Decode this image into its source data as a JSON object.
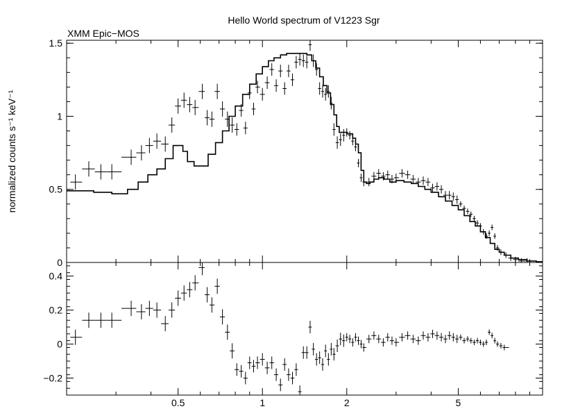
{
  "chart_data": {
    "type": "scatter",
    "title": "Hello World spectrum of V1223 Sgr",
    "instrument_label": "XMM Epic−MOS",
    "x_scale": "log",
    "xlim": [
      0.2,
      10
    ],
    "x_ticks": [
      0.5,
      1,
      2,
      5
    ],
    "x_tick_labels": [
      "0.5",
      "1",
      "2",
      "5"
    ],
    "grid": false,
    "legend": "none",
    "panels": [
      {
        "name": "spectrum",
        "ylabel": "normalized counts s⁻¹ keV⁻¹",
        "ylim": [
          0,
          1.52
        ],
        "y_ticks": [
          0,
          0.5,
          1,
          1.5
        ],
        "y_tick_labels": [
          "0",
          "0.5",
          "1",
          "1.5"
        ],
        "data_points": [
          [
            0.215,
            0.55
          ],
          [
            0.24,
            0.64
          ],
          [
            0.265,
            0.62
          ],
          [
            0.29,
            0.62
          ],
          [
            0.34,
            0.72
          ],
          [
            0.37,
            0.75
          ],
          [
            0.395,
            0.8
          ],
          [
            0.42,
            0.83
          ],
          [
            0.45,
            0.81
          ],
          [
            0.475,
            0.94
          ],
          [
            0.5,
            1.07
          ],
          [
            0.525,
            1.11
          ],
          [
            0.55,
            1.08
          ],
          [
            0.575,
            1.06
          ],
          [
            0.61,
            1.17
          ],
          [
            0.635,
            0.99
          ],
          [
            0.66,
            0.98
          ],
          [
            0.69,
            1.17
          ],
          [
            0.72,
            1.05
          ],
          [
            0.75,
            0.98
          ],
          [
            0.78,
            0.94
          ],
          [
            0.81,
            0.91
          ],
          [
            0.84,
            1.04
          ],
          [
            0.87,
            0.92
          ],
          [
            0.9,
            1.16
          ],
          [
            0.93,
            1.05
          ],
          [
            0.96,
            1.2
          ],
          [
            1.0,
            1.15
          ],
          [
            1.04,
            1.23
          ],
          [
            1.08,
            1.32
          ],
          [
            1.12,
            1.21
          ],
          [
            1.16,
            1.31
          ],
          [
            1.2,
            1.19
          ],
          [
            1.24,
            1.31
          ],
          [
            1.28,
            1.25
          ],
          [
            1.32,
            1.37
          ],
          [
            1.36,
            1.39
          ],
          [
            1.4,
            1.38
          ],
          [
            1.44,
            1.37
          ],
          [
            1.48,
            1.49
          ],
          [
            1.52,
            1.38
          ],
          [
            1.56,
            1.32
          ],
          [
            1.6,
            1.19
          ],
          [
            1.64,
            1.17
          ],
          [
            1.68,
            1.15
          ],
          [
            1.72,
            1.17
          ],
          [
            1.76,
            1.09
          ],
          [
            1.8,
            0.91
          ],
          [
            1.85,
            0.82
          ],
          [
            1.9,
            0.84
          ],
          [
            1.95,
            0.87
          ],
          [
            2.0,
            0.89
          ],
          [
            2.05,
            0.87
          ],
          [
            2.1,
            0.83
          ],
          [
            2.15,
            0.79
          ],
          [
            2.2,
            0.68
          ],
          [
            2.25,
            0.58
          ],
          [
            2.3,
            0.55
          ],
          [
            2.4,
            0.55
          ],
          [
            2.5,
            0.59
          ],
          [
            2.6,
            0.61
          ],
          [
            2.7,
            0.59
          ],
          [
            2.8,
            0.6
          ],
          [
            2.9,
            0.57
          ],
          [
            3.0,
            0.58
          ],
          [
            3.15,
            0.61
          ],
          [
            3.3,
            0.6
          ],
          [
            3.45,
            0.57
          ],
          [
            3.6,
            0.55
          ],
          [
            3.75,
            0.56
          ],
          [
            3.9,
            0.55
          ],
          [
            4.05,
            0.51
          ],
          [
            4.2,
            0.52
          ],
          [
            4.35,
            0.5
          ],
          [
            4.5,
            0.46
          ],
          [
            4.65,
            0.46
          ],
          [
            4.8,
            0.45
          ],
          [
            4.95,
            0.43
          ],
          [
            5.1,
            0.4
          ],
          [
            5.25,
            0.37
          ],
          [
            5.4,
            0.35
          ],
          [
            5.55,
            0.33
          ],
          [
            5.7,
            0.3
          ],
          [
            5.85,
            0.27
          ],
          [
            6.0,
            0.25
          ],
          [
            6.15,
            0.21
          ],
          [
            6.3,
            0.18
          ],
          [
            6.45,
            0.2
          ],
          [
            6.6,
            0.24
          ],
          [
            6.75,
            0.18
          ],
          [
            6.9,
            0.1
          ],
          [
            7.1,
            0.07
          ],
          [
            7.4,
            0.05
          ],
          [
            7.7,
            0.03
          ],
          [
            8.0,
            0.02
          ],
          [
            8.4,
            0.01
          ],
          [
            8.8,
            0.01
          ]
        ],
        "model_bins": [
          [
            0.2,
            0.49
          ],
          [
            0.25,
            0.48
          ],
          [
            0.29,
            0.47
          ],
          [
            0.33,
            0.5
          ],
          [
            0.36,
            0.55
          ],
          [
            0.39,
            0.6
          ],
          [
            0.42,
            0.64
          ],
          [
            0.45,
            0.71
          ],
          [
            0.48,
            0.8
          ],
          [
            0.52,
            0.76
          ],
          [
            0.54,
            0.69
          ],
          [
            0.57,
            0.66
          ],
          [
            0.6,
            0.66
          ],
          [
            0.64,
            0.74
          ],
          [
            0.68,
            0.82
          ],
          [
            0.72,
            0.9
          ],
          [
            0.76,
            1.0
          ],
          [
            0.8,
            1.07
          ],
          [
            0.85,
            1.15
          ],
          [
            0.9,
            1.22
          ],
          [
            0.95,
            1.29
          ],
          [
            1.0,
            1.34
          ],
          [
            1.05,
            1.38
          ],
          [
            1.1,
            1.4
          ],
          [
            1.16,
            1.42
          ],
          [
            1.22,
            1.43
          ],
          [
            1.3,
            1.43
          ],
          [
            1.38,
            1.43
          ],
          [
            1.44,
            1.42
          ],
          [
            1.5,
            1.38
          ],
          [
            1.55,
            1.33
          ],
          [
            1.6,
            1.27
          ],
          [
            1.65,
            1.21
          ],
          [
            1.7,
            1.16
          ],
          [
            1.75,
            1.08
          ],
          [
            1.8,
            1.01
          ],
          [
            1.84,
            0.93
          ],
          [
            1.88,
            0.89
          ],
          [
            2.0,
            0.88
          ],
          [
            2.1,
            0.85
          ],
          [
            2.15,
            0.81
          ],
          [
            2.2,
            0.75
          ],
          [
            2.25,
            0.63
          ],
          [
            2.3,
            0.55
          ],
          [
            2.35,
            0.54
          ],
          [
            2.42,
            0.55
          ],
          [
            2.5,
            0.57
          ],
          [
            2.6,
            0.58
          ],
          [
            2.72,
            0.57
          ],
          [
            2.85,
            0.55
          ],
          [
            3.0,
            0.56
          ],
          [
            3.2,
            0.55
          ],
          [
            3.4,
            0.54
          ],
          [
            3.6,
            0.52
          ],
          [
            3.8,
            0.5
          ],
          [
            4.0,
            0.48
          ],
          [
            4.25,
            0.45
          ],
          [
            4.5,
            0.42
          ],
          [
            4.75,
            0.39
          ],
          [
            5.0,
            0.36
          ],
          [
            5.25,
            0.32
          ],
          [
            5.5,
            0.28
          ],
          [
            5.75,
            0.25
          ],
          [
            6.0,
            0.21
          ],
          [
            6.25,
            0.17
          ],
          [
            6.5,
            0.13
          ],
          [
            6.75,
            0.09
          ],
          [
            7.0,
            0.07
          ],
          [
            7.3,
            0.05
          ],
          [
            7.7,
            0.03
          ],
          [
            8.2,
            0.02
          ],
          [
            8.8,
            0.01
          ],
          [
            9.5,
            0.005
          ],
          [
            10.0,
            0.0
          ]
        ]
      },
      {
        "name": "residuals",
        "ylabel": "",
        "ylim": [
          -0.3,
          0.48
        ],
        "y_ticks": [
          -0.2,
          0,
          0.2,
          0.4
        ],
        "y_tick_labels": [
          "−0.2",
          "0",
          "0.2",
          "0.4"
        ],
        "data_points": [
          [
            0.215,
            0.04
          ],
          [
            0.24,
            0.14
          ],
          [
            0.265,
            0.14
          ],
          [
            0.29,
            0.14
          ],
          [
            0.34,
            0.21
          ],
          [
            0.37,
            0.19
          ],
          [
            0.395,
            0.21
          ],
          [
            0.42,
            0.2
          ],
          [
            0.45,
            0.12
          ],
          [
            0.475,
            0.2
          ],
          [
            0.5,
            0.27
          ],
          [
            0.525,
            0.3
          ],
          [
            0.55,
            0.32
          ],
          [
            0.575,
            0.36
          ],
          [
            0.61,
            0.45
          ],
          [
            0.635,
            0.29
          ],
          [
            0.66,
            0.23
          ],
          [
            0.69,
            0.34
          ],
          [
            0.72,
            0.16
          ],
          [
            0.75,
            0.07
          ],
          [
            0.78,
            -0.04
          ],
          [
            0.81,
            -0.15
          ],
          [
            0.84,
            -0.16
          ],
          [
            0.87,
            -0.2
          ],
          [
            0.9,
            -0.11
          ],
          [
            0.93,
            -0.13
          ],
          [
            0.96,
            -0.11
          ],
          [
            1.0,
            -0.09
          ],
          [
            1.04,
            -0.14
          ],
          [
            1.08,
            -0.11
          ],
          [
            1.12,
            -0.18
          ],
          [
            1.16,
            -0.24
          ],
          [
            1.2,
            -0.12
          ],
          [
            1.24,
            -0.18
          ],
          [
            1.28,
            -0.2
          ],
          [
            1.32,
            -0.15
          ],
          [
            1.36,
            -0.28
          ],
          [
            1.4,
            -0.05
          ],
          [
            1.44,
            -0.05
          ],
          [
            1.48,
            0.1
          ],
          [
            1.52,
            -0.03
          ],
          [
            1.56,
            -0.09
          ],
          [
            1.6,
            -0.08
          ],
          [
            1.64,
            -0.12
          ],
          [
            1.68,
            -0.04
          ],
          [
            1.72,
            -0.09
          ],
          [
            1.76,
            -0.03
          ],
          [
            1.8,
            -0.06
          ],
          [
            1.85,
            -0.01
          ],
          [
            1.9,
            0.03
          ],
          [
            1.95,
            0.02
          ],
          [
            2.0,
            0.04
          ],
          [
            2.05,
            0.03
          ],
          [
            2.1,
            0.01
          ],
          [
            2.15,
            0.04
          ],
          [
            2.2,
            0.02
          ],
          [
            2.25,
            0.0
          ],
          [
            2.3,
            -0.02
          ],
          [
            2.4,
            0.03
          ],
          [
            2.5,
            0.05
          ],
          [
            2.6,
            0.03
          ],
          [
            2.7,
            0.01
          ],
          [
            2.8,
            0.04
          ],
          [
            2.9,
            0.02
          ],
          [
            3.0,
            0.01
          ],
          [
            3.15,
            0.04
          ],
          [
            3.3,
            0.05
          ],
          [
            3.45,
            0.03
          ],
          [
            3.6,
            0.02
          ],
          [
            3.75,
            0.05
          ],
          [
            3.9,
            0.04
          ],
          [
            4.05,
            0.06
          ],
          [
            4.2,
            0.05
          ],
          [
            4.35,
            0.04
          ],
          [
            4.5,
            0.03
          ],
          [
            4.65,
            0.05
          ],
          [
            4.8,
            0.04
          ],
          [
            4.95,
            0.03
          ],
          [
            5.1,
            0.04
          ],
          [
            5.25,
            0.02
          ],
          [
            5.4,
            0.03
          ],
          [
            5.55,
            0.02
          ],
          [
            5.7,
            0.01
          ],
          [
            5.85,
            0.02
          ],
          [
            6.0,
            0.01
          ],
          [
            6.15,
            0.0
          ],
          [
            6.3,
            0.01
          ],
          [
            6.45,
            0.07
          ],
          [
            6.6,
            0.05
          ],
          [
            6.75,
            0.02
          ],
          [
            6.9,
            0.0
          ],
          [
            7.1,
            -0.01
          ],
          [
            7.3,
            -0.02
          ]
        ]
      }
    ]
  }
}
